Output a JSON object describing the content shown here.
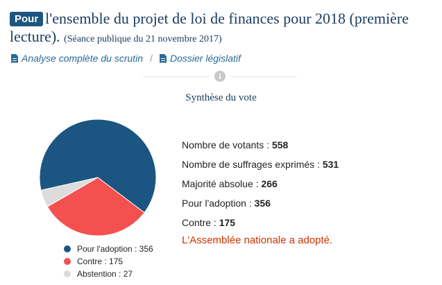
{
  "header": {
    "badge": "Pour",
    "title": "l'ensemble du projet de loi de finances pour 2018 (première lecture).",
    "session": "(Séance publique du 21 novembre 2017)"
  },
  "links": {
    "analyse": "Analyse complète du scrutin",
    "separator": "/",
    "dossier": "Dossier législatif"
  },
  "info_icon": "i",
  "synthese": {
    "title": "Synthèse du vote"
  },
  "stats": [
    {
      "label": "Nombre de votants :",
      "value": "558"
    },
    {
      "label": "Nombre de suffrages exprimés :",
      "value": "531"
    },
    {
      "label": "Majorité absolue :",
      "value": "266"
    },
    {
      "label": "Pour l'adoption :",
      "value": "356"
    },
    {
      "label": "Contre :",
      "value": "175"
    }
  ],
  "result": "L'Assemblée nationale a adopté.",
  "colors": {
    "pour": "#1a5681",
    "contre": "#f4504f",
    "abstention": "#dcdcdc"
  },
  "chart_data": {
    "type": "pie",
    "slices": [
      {
        "label": "Pour l'adoption : 356",
        "name": "Pour l'adoption",
        "value": 356,
        "color": "#1a5681"
      },
      {
        "label": "Contre : 175",
        "name": "Contre",
        "value": 175,
        "color": "#f4504f"
      },
      {
        "label": "Abstention : 27",
        "name": "Abstention",
        "value": 27,
        "color": "#dcdcdc"
      }
    ],
    "legend_position": "bottom"
  }
}
